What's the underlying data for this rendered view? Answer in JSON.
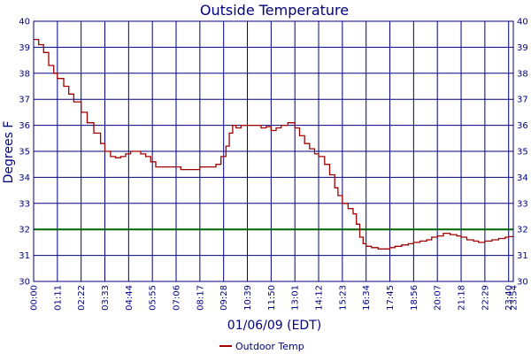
{
  "chart_data": {
    "type": "line",
    "title": "Outside Temperature",
    "xlabel": "01/06/09 (EDT)",
    "ylabel": "Degrees F",
    "ylim": [
      30,
      40
    ],
    "yticks": [
      30,
      31,
      32,
      33,
      34,
      35,
      36,
      37,
      38,
      39,
      40
    ],
    "xticks": [
      "00:00",
      "01:11",
      "02:22",
      "03:33",
      "04:44",
      "05:55",
      "07:06",
      "08:17",
      "09:28",
      "10:39",
      "11:50",
      "13:01",
      "14:12",
      "15:23",
      "16:34",
      "17:45",
      "18:56",
      "20:07",
      "21:18",
      "22:29",
      "23:40",
      "23:54"
    ],
    "grid": true,
    "reference_line": {
      "value": 32,
      "color": "#006400"
    },
    "legend_position": "bottom-center",
    "series": [
      {
        "name": "Outdoor Temp",
        "color": "#a00000",
        "points": [
          [
            "00:00",
            39.3
          ],
          [
            "00:15",
            39.1
          ],
          [
            "00:30",
            38.8
          ],
          [
            "00:45",
            38.3
          ],
          [
            "01:00",
            38.0
          ],
          [
            "01:11",
            37.8
          ],
          [
            "01:30",
            37.5
          ],
          [
            "01:45",
            37.2
          ],
          [
            "02:00",
            36.9
          ],
          [
            "02:22",
            36.5
          ],
          [
            "02:40",
            36.1
          ],
          [
            "03:00",
            35.7
          ],
          [
            "03:20",
            35.3
          ],
          [
            "03:33",
            35.0
          ],
          [
            "03:50",
            34.8
          ],
          [
            "04:05",
            34.75
          ],
          [
            "04:20",
            34.8
          ],
          [
            "04:35",
            34.9
          ],
          [
            "04:50",
            35.0
          ],
          [
            "05:05",
            35.0
          ],
          [
            "05:20",
            34.9
          ],
          [
            "05:35",
            34.8
          ],
          [
            "05:50",
            34.6
          ],
          [
            "06:05",
            34.4
          ],
          [
            "06:30",
            34.4
          ],
          [
            "07:06",
            34.4
          ],
          [
            "07:20",
            34.3
          ],
          [
            "07:50",
            34.3
          ],
          [
            "08:05",
            34.3
          ],
          [
            "08:17",
            34.4
          ],
          [
            "08:40",
            34.4
          ],
          [
            "09:05",
            34.5
          ],
          [
            "09:20",
            34.8
          ],
          [
            "09:35",
            35.2
          ],
          [
            "09:45",
            35.7
          ],
          [
            "09:55",
            36.0
          ],
          [
            "10:05",
            35.9
          ],
          [
            "10:20",
            36.0
          ],
          [
            "10:39",
            36.0
          ],
          [
            "11:00",
            36.0
          ],
          [
            "11:20",
            35.9
          ],
          [
            "11:35",
            35.95
          ],
          [
            "11:50",
            35.8
          ],
          [
            "12:05",
            35.9
          ],
          [
            "12:20",
            36.0
          ],
          [
            "12:40",
            36.1
          ],
          [
            "13:01",
            35.9
          ],
          [
            "13:15",
            35.6
          ],
          [
            "13:30",
            35.3
          ],
          [
            "13:45",
            35.1
          ],
          [
            "14:00",
            34.9
          ],
          [
            "14:12",
            34.8
          ],
          [
            "14:30",
            34.5
          ],
          [
            "14:45",
            34.1
          ],
          [
            "15:00",
            33.6
          ],
          [
            "15:10",
            33.3
          ],
          [
            "15:23",
            33.0
          ],
          [
            "15:40",
            32.8
          ],
          [
            "15:55",
            32.6
          ],
          [
            "16:05",
            32.2
          ],
          [
            "16:15",
            31.7
          ],
          [
            "16:25",
            31.45
          ],
          [
            "16:34",
            31.35
          ],
          [
            "16:50",
            31.3
          ],
          [
            "17:10",
            31.25
          ],
          [
            "17:30",
            31.25
          ],
          [
            "17:45",
            31.3
          ],
          [
            "18:00",
            31.35
          ],
          [
            "18:20",
            31.4
          ],
          [
            "18:40",
            31.45
          ],
          [
            "18:56",
            31.5
          ],
          [
            "19:15",
            31.55
          ],
          [
            "19:35",
            31.6
          ],
          [
            "19:50",
            31.7
          ],
          [
            "20:07",
            31.75
          ],
          [
            "20:25",
            31.85
          ],
          [
            "20:45",
            31.8
          ],
          [
            "21:05",
            31.75
          ],
          [
            "21:18",
            31.7
          ],
          [
            "21:35",
            31.6
          ],
          [
            "21:55",
            31.55
          ],
          [
            "22:10",
            31.5
          ],
          [
            "22:29",
            31.55
          ],
          [
            "22:50",
            31.6
          ],
          [
            "23:10",
            31.65
          ],
          [
            "23:30",
            31.7
          ],
          [
            "23:40",
            31.72
          ],
          [
            "23:54",
            31.75
          ]
        ]
      }
    ]
  }
}
